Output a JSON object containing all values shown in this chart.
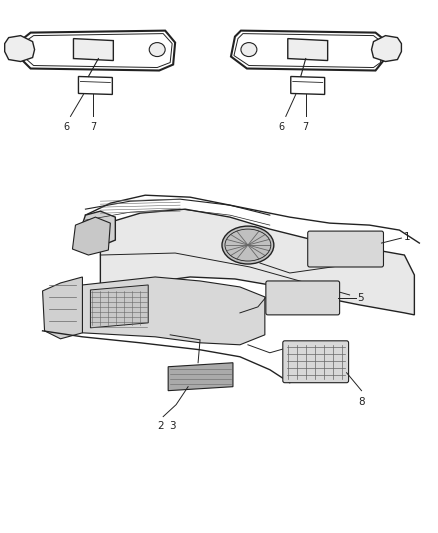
{
  "bg_color": "#ffffff",
  "line_color": "#222222",
  "gray_fill": "#d8d8d8",
  "dark_gray": "#666666",
  "mid_gray": "#aaaaaa",
  "light_gray": "#eeeeee"
}
